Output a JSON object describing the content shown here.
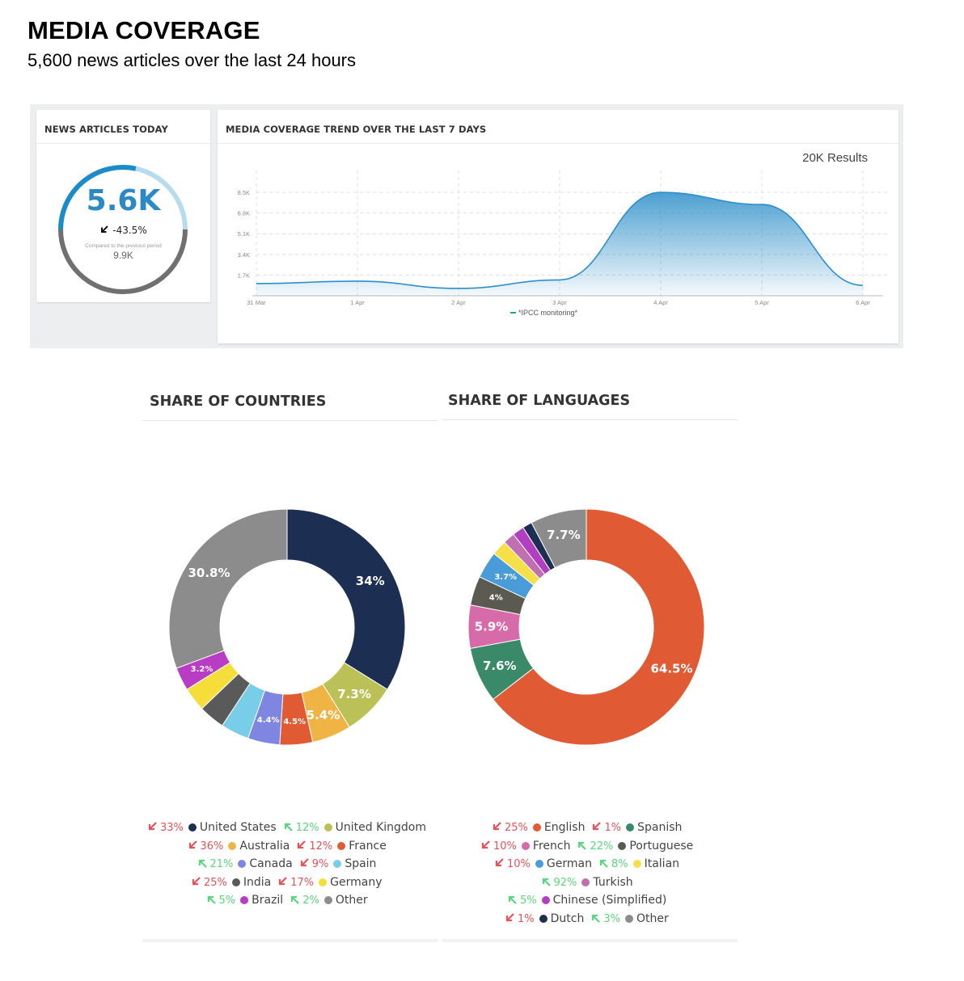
{
  "header": {
    "title": "MEDIA COVERAGE",
    "subtitle": "5,600 news articles over the last 24 hours"
  },
  "kpi": {
    "title": "NEWS ARTICLES TODAY",
    "value": "5.6K",
    "change": "-43.5%",
    "change_direction": "down",
    "compare_label": "Compared to the previous period",
    "previous": "9.9K",
    "gauge_fraction": 0.566
  },
  "trend": {
    "title": "MEDIA COVERAGE TREND OVER THE LAST 7 DAYS",
    "results": "20K Results",
    "legend": "*IPCC monitoring*"
  },
  "countries": {
    "title": "SHARE OF COUNTRIES"
  },
  "languages": {
    "title": "SHARE OF LANGUAGES"
  },
  "chart_data": [
    {
      "type": "area",
      "title": "MEDIA COVERAGE TREND OVER THE LAST 7 DAYS",
      "x": [
        "31 Mar",
        "1 Apr",
        "2 Apr",
        "3 Apr",
        "4 Apr",
        "5 Apr",
        "6 Apr"
      ],
      "y_ticks": [
        "1.7K",
        "3.4K",
        "5.1K",
        "6.8K",
        "8.5K"
      ],
      "ylim": [
        0,
        9500
      ],
      "grid": true,
      "color": "#2d8fc9",
      "series": [
        {
          "name": "*IPCC monitoring*",
          "values": [
            1000,
            1200,
            600,
            1300,
            8500,
            7500,
            850
          ]
        }
      ]
    },
    {
      "type": "pie",
      "title": "SHARE OF COUNTRIES",
      "slices": [
        {
          "name": "United States",
          "value": 34,
          "label": "34%",
          "color": "#1c2e51",
          "change": "33%",
          "dir": "down"
        },
        {
          "name": "United Kingdom",
          "value": 7.3,
          "label": "7.3%",
          "color": "#bcc157",
          "change": "12%",
          "dir": "up"
        },
        {
          "name": "Australia",
          "value": 5.4,
          "label": "5.4%",
          "color": "#f0b444",
          "change": "36%",
          "dir": "down"
        },
        {
          "name": "France",
          "value": 4.5,
          "label": "4.5%",
          "color": "#e05a33",
          "change": "12%",
          "dir": "down"
        },
        {
          "name": "Canada",
          "value": 4.4,
          "label": "4.4%",
          "color": "#7f86e2",
          "change": "21%",
          "dir": "up"
        },
        {
          "name": "Spain",
          "value": 3.9,
          "label": "",
          "color": "#78cde9",
          "change": "9%",
          "dir": "down"
        },
        {
          "name": "India",
          "value": 3.6,
          "label": "",
          "color": "#5a5a5a",
          "change": "25%",
          "dir": "down"
        },
        {
          "name": "Germany",
          "value": 3.3,
          "label": "",
          "color": "#f6de3a",
          "change": "17%",
          "dir": "down"
        },
        {
          "name": "Brazil",
          "value": 3.2,
          "label": "3.2%",
          "color": "#b93cc4",
          "change": "5%",
          "dir": "up"
        },
        {
          "name": "Other",
          "value": 30.8,
          "label": "30.8%",
          "color": "#8c8c8c",
          "change": "2%",
          "dir": "up"
        }
      ],
      "legend_rows": [
        [
          "United States",
          "United Kingdom"
        ],
        [
          "Australia",
          "France"
        ],
        [
          "Canada",
          "Spain"
        ],
        [
          "India",
          "Germany"
        ],
        [
          "Brazil",
          "Other"
        ]
      ]
    },
    {
      "type": "pie",
      "title": "SHARE OF LANGUAGES",
      "slices": [
        {
          "name": "English",
          "value": 64.5,
          "label": "64.5%",
          "color": "#e05a33",
          "change": "25%",
          "dir": "down"
        },
        {
          "name": "Spanish",
          "value": 7.6,
          "label": "7.6%",
          "color": "#3a8a6a",
          "change": "1%",
          "dir": "down"
        },
        {
          "name": "French",
          "value": 5.9,
          "label": "5.9%",
          "color": "#d76aa8",
          "change": "10%",
          "dir": "down"
        },
        {
          "name": "Portuguese",
          "value": 4,
          "label": "4%",
          "color": "#5a5a50",
          "change": "22%",
          "dir": "up"
        },
        {
          "name": "German",
          "value": 3.7,
          "label": "3.7%",
          "color": "#4a9cd8",
          "change": "10%",
          "dir": "down"
        },
        {
          "name": "Italian",
          "value": 2.1,
          "label": "",
          "color": "#f5e04a",
          "change": "8%",
          "dir": "up"
        },
        {
          "name": "Turkish",
          "value": 1.6,
          "label": "",
          "color": "#c070b0",
          "change": "92%",
          "dir": "up"
        },
        {
          "name": "Chinese (Simplified)",
          "value": 1.6,
          "label": "",
          "color": "#b23fc2",
          "change": "5%",
          "dir": "up"
        },
        {
          "name": "Dutch",
          "value": 1.3,
          "label": "",
          "color": "#1c2e51",
          "change": "1%",
          "dir": "down"
        },
        {
          "name": "Other",
          "value": 7.7,
          "label": "7.7%",
          "color": "#8c8c8c",
          "change": "3%",
          "dir": "up"
        }
      ],
      "legend_rows": [
        [
          "English",
          "Spanish"
        ],
        [
          "French",
          "Portuguese"
        ],
        [
          "German",
          "Italian"
        ],
        [
          "Turkish"
        ],
        [
          "Chinese (Simplified)"
        ],
        [
          "Dutch",
          "Other"
        ]
      ]
    }
  ],
  "colors": {
    "down": "#e8525a",
    "up": "#5bd67c",
    "accent": "#2b8ac6"
  }
}
